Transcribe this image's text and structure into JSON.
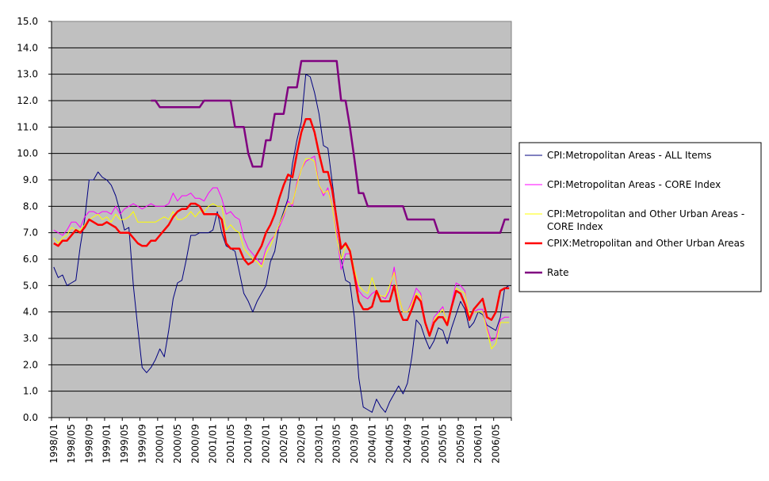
{
  "chart_data": {
    "type": "line",
    "title": "",
    "xlabel": "",
    "ylabel": "",
    "ylim": [
      0,
      15
    ],
    "y_ticks": [
      "0.0",
      "1.0",
      "2.0",
      "3.0",
      "4.0",
      "5.0",
      "6.0",
      "7.0",
      "8.0",
      "9.0",
      "10.0",
      "11.0",
      "12.0",
      "13.0",
      "14.0",
      "15.0"
    ],
    "x_period": {
      "start": "1998/01",
      "end": "2006/08",
      "points": 104,
      "tick_every": 4
    },
    "x_tick_labels": [
      "1998/01",
      "1998/05",
      "1998/09",
      "1999/01",
      "1999/05",
      "1999/09",
      "2000/01",
      "2000/05",
      "2000/09",
      "2001/01",
      "2001/05",
      "2001/09",
      "2002/01",
      "2002/05",
      "2002/09",
      "2003/01",
      "2003/05",
      "2003/09",
      "2004/01",
      "2004/05",
      "2004/09",
      "2005/01",
      "2005/05",
      "2005/09",
      "2006/01",
      "2006/05"
    ],
    "grid": true,
    "legend_position": "right",
    "plot_background": "#c0c0c0",
    "series": [
      {
        "name": "CPI:Metropolitan Areas - ALL Items",
        "color": "#000080",
        "values": [
          5.7,
          5.3,
          5.4,
          5.0,
          5.1,
          5.2,
          6.5,
          7.5,
          9.0,
          9.0,
          9.3,
          9.1,
          9.0,
          8.8,
          8.4,
          7.8,
          7.1,
          7.2,
          5.0,
          3.4,
          1.9,
          1.7,
          1.9,
          2.2,
          2.6,
          2.3,
          3.3,
          4.5,
          5.1,
          5.2,
          6.0,
          6.9,
          6.9,
          7.0,
          7.0,
          7.0,
          7.1,
          7.8,
          7.0,
          6.5,
          6.4,
          6.3,
          5.5,
          4.7,
          4.4,
          4.0,
          4.4,
          4.7,
          5.0,
          5.9,
          6.3,
          7.3,
          7.8,
          8.3,
          9.6,
          10.5,
          11.2,
          13.0,
          12.9,
          12.3,
          11.5,
          10.3,
          10.2,
          8.9,
          7.6,
          6.0,
          5.2,
          5.1,
          3.8,
          1.5,
          0.4,
          0.3,
          0.2,
          0.7,
          0.4,
          0.2,
          0.6,
          0.9,
          1.2,
          0.9,
          1.3,
          2.3,
          3.7,
          3.5,
          3.0,
          2.6,
          2.9,
          3.4,
          3.3,
          2.8,
          3.4,
          3.9,
          4.4,
          4.1,
          3.4,
          3.6,
          4.0,
          3.9,
          3.5,
          3.4,
          3.3,
          3.8,
          4.9,
          5.0
        ]
      },
      {
        "name": "CPI:Metropolitan Areas - CORE Index",
        "color": "#ff00ff",
        "values": [
          7.1,
          7.0,
          6.9,
          7.1,
          7.4,
          7.4,
          7.2,
          7.6,
          7.8,
          7.8,
          7.7,
          7.8,
          7.8,
          7.7,
          8.0,
          7.7,
          7.9,
          8.0,
          8.1,
          8.0,
          7.9,
          8.0,
          8.1,
          8.0,
          8.0,
          8.0,
          8.1,
          8.5,
          8.2,
          8.4,
          8.4,
          8.5,
          8.3,
          8.3,
          8.2,
          8.5,
          8.7,
          8.7,
          8.3,
          7.7,
          7.8,
          7.6,
          7.5,
          6.8,
          6.4,
          6.2,
          6.0,
          5.8,
          6.4,
          6.7,
          6.9,
          7.2,
          7.6,
          8.2,
          8.0,
          8.9,
          9.4,
          9.7,
          9.8,
          9.9,
          8.8,
          8.4,
          8.7,
          8.0,
          7.0,
          5.6,
          6.2,
          6.2,
          5.5,
          4.8,
          4.6,
          4.5,
          4.7,
          4.8,
          4.6,
          4.5,
          4.8,
          5.7,
          4.6,
          4.0,
          4.0,
          4.4,
          4.9,
          4.7,
          3.6,
          3.2,
          3.8,
          4.0,
          4.2,
          3.5,
          4.3,
          5.1,
          5.0,
          4.8,
          3.7,
          4.0,
          4.1,
          4.1,
          3.4,
          2.9,
          3.0,
          3.7,
          3.8,
          3.8
        ]
      },
      {
        "name": "CPI:Metropolitan and Other Urban Areas - CORE Index",
        "color": "#ffff00",
        "values": [
          6.8,
          6.6,
          6.8,
          6.9,
          7.2,
          7.1,
          7.1,
          7.3,
          7.5,
          7.6,
          7.7,
          7.5,
          7.6,
          7.4,
          7.7,
          7.5,
          7.5,
          7.6,
          7.8,
          7.4,
          7.4,
          7.4,
          7.4,
          7.4,
          7.5,
          7.6,
          7.5,
          7.8,
          7.5,
          7.5,
          7.6,
          7.8,
          7.6,
          7.8,
          7.8,
          8.0,
          8.1,
          8.0,
          8.0,
          7.1,
          7.3,
          7.1,
          7.0,
          6.4,
          6.2,
          6.0,
          5.9,
          5.7,
          6.2,
          6.5,
          6.9,
          7.3,
          7.7,
          8.1,
          8.1,
          8.8,
          9.4,
          9.8,
          9.8,
          9.7,
          8.8,
          8.5,
          8.6,
          8.0,
          6.8,
          6.0,
          6.5,
          6.4,
          5.6,
          5.0,
          4.8,
          4.7,
          5.3,
          4.8,
          4.6,
          4.6,
          5.0,
          5.5,
          4.6,
          4.0,
          4.0,
          4.3,
          4.7,
          4.6,
          3.6,
          3.2,
          3.7,
          3.9,
          4.1,
          3.6,
          4.2,
          4.9,
          4.8,
          4.7,
          3.9,
          4.0,
          4.0,
          4.0,
          3.3,
          2.6,
          2.8,
          3.6,
          3.6,
          3.6
        ]
      },
      {
        "name": "CPIX:Metropolitan and Other Urban Areas",
        "color": "#ff0000",
        "values": [
          6.6,
          6.5,
          6.7,
          6.7,
          6.9,
          7.1,
          7.0,
          7.2,
          7.5,
          7.4,
          7.3,
          7.3,
          7.4,
          7.3,
          7.2,
          7.0,
          7.0,
          7.0,
          6.8,
          6.6,
          6.5,
          6.5,
          6.7,
          6.7,
          6.9,
          7.1,
          7.3,
          7.6,
          7.8,
          7.9,
          7.9,
          8.1,
          8.1,
          8.0,
          7.7,
          7.7,
          7.7,
          7.7,
          7.5,
          6.6,
          6.4,
          6.4,
          6.4,
          6.0,
          5.8,
          5.9,
          6.2,
          6.5,
          7.0,
          7.3,
          7.7,
          8.3,
          8.8,
          9.2,
          9.1,
          10.0,
          10.8,
          11.3,
          11.3,
          10.8,
          10.0,
          9.3,
          9.3,
          8.6,
          7.5,
          6.4,
          6.6,
          6.3,
          5.4,
          4.4,
          4.1,
          4.1,
          4.2,
          4.8,
          4.4,
          4.4,
          4.4,
          5.0,
          4.1,
          3.7,
          3.7,
          4.1,
          4.6,
          4.4,
          3.6,
          3.1,
          3.6,
          3.8,
          3.8,
          3.5,
          4.2,
          4.8,
          4.7,
          4.3,
          3.7,
          4.1,
          4.3,
          4.5,
          3.8,
          3.7,
          4.0,
          4.8,
          4.9,
          4.9
        ]
      },
      {
        "name": "Rate",
        "color": "#800080",
        "values": [
          null,
          null,
          null,
          null,
          null,
          null,
          null,
          null,
          null,
          null,
          null,
          null,
          null,
          null,
          null,
          null,
          null,
          null,
          null,
          null,
          null,
          null,
          12.0,
          12.0,
          11.75,
          11.75,
          11.75,
          11.75,
          11.75,
          11.75,
          11.75,
          11.75,
          11.75,
          11.75,
          12.0,
          12.0,
          12.0,
          12.0,
          12.0,
          12.0,
          12.0,
          11.0,
          11.0,
          11.0,
          10.0,
          9.5,
          9.5,
          9.5,
          10.5,
          10.5,
          11.5,
          11.5,
          11.5,
          12.5,
          12.5,
          12.5,
          13.5,
          13.5,
          13.5,
          13.5,
          13.5,
          13.5,
          13.5,
          13.5,
          13.5,
          12.0,
          12.0,
          11.0,
          9.8,
          8.5,
          8.5,
          8.0,
          8.0,
          8.0,
          8.0,
          8.0,
          8.0,
          8.0,
          8.0,
          8.0,
          7.5,
          7.5,
          7.5,
          7.5,
          7.5,
          7.5,
          7.5,
          7.0,
          7.0,
          7.0,
          7.0,
          7.0,
          7.0,
          7.0,
          7.0,
          7.0,
          7.0,
          7.0,
          7.0,
          7.0,
          7.0,
          7.0,
          7.5,
          7.5
        ]
      }
    ],
    "legend": [
      {
        "lines": [
          "CPI:Metropolitan Areas - ALL Items"
        ]
      },
      {
        "lines": [
          "CPI:Metropolitan Areas - CORE Index"
        ]
      },
      {
        "lines": [
          "CPI:Metropolitan and Other Urban Areas -",
          "CORE Index"
        ]
      },
      {
        "lines": [
          "CPIX:Metropolitan and Other Urban Areas"
        ]
      },
      {
        "lines": [
          "Rate"
        ]
      }
    ]
  }
}
